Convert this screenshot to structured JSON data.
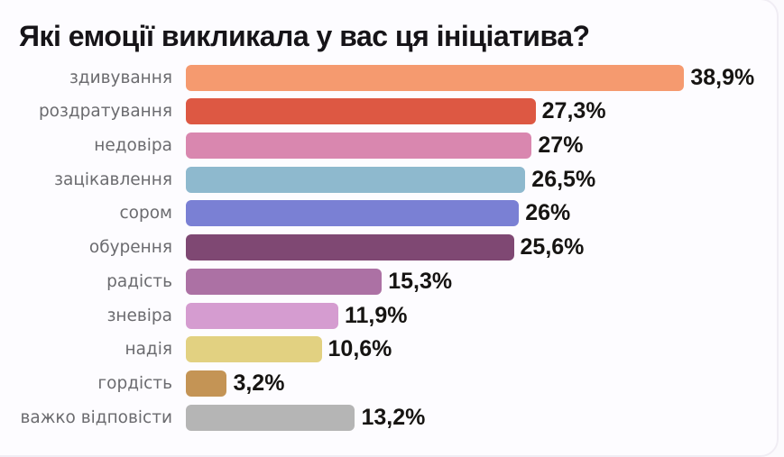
{
  "title": "Які емоції викликала у вас ця ініціатива?",
  "chart_data": {
    "type": "bar",
    "orientation": "horizontal",
    "title": "Які емоції викликала у вас ця ініціатива?",
    "xlabel": "",
    "ylabel": "",
    "xlim": [
      0,
      40
    ],
    "grid": false,
    "legend": false,
    "unit": "%",
    "categories": [
      "здивування",
      "роздратування",
      "недовіра",
      "зацікавлення",
      "сором",
      "обурення",
      "радість",
      "зневіра",
      "надія",
      "гордість",
      "важко відповісти"
    ],
    "values": [
      38.9,
      27.3,
      27,
      26.5,
      26,
      25.6,
      15.3,
      11.9,
      10.6,
      3.2,
      13.2
    ],
    "value_labels": [
      "38,9%",
      "27,3%",
      "27%",
      "26,5%",
      "26%",
      "25,6%",
      "15,3%",
      "11,9%",
      "10,6%",
      "3,2%",
      "13,2%"
    ],
    "bar_colors": [
      "#F59A6F",
      "#DD5843",
      "#D987AF",
      "#8EB9CE",
      "#7A80D4",
      "#7F4873",
      "#AC71A4",
      "#D59CD0",
      "#E2D181",
      "#C49455",
      "#B5B5B5"
    ]
  },
  "colors": {
    "page_background": "#FBFAFD",
    "card_background": "#FDFCFF",
    "card_border": "#F0EDF4",
    "title_text": "#161418",
    "category_text": "#6B6B6F",
    "value_text": "#161412"
  }
}
